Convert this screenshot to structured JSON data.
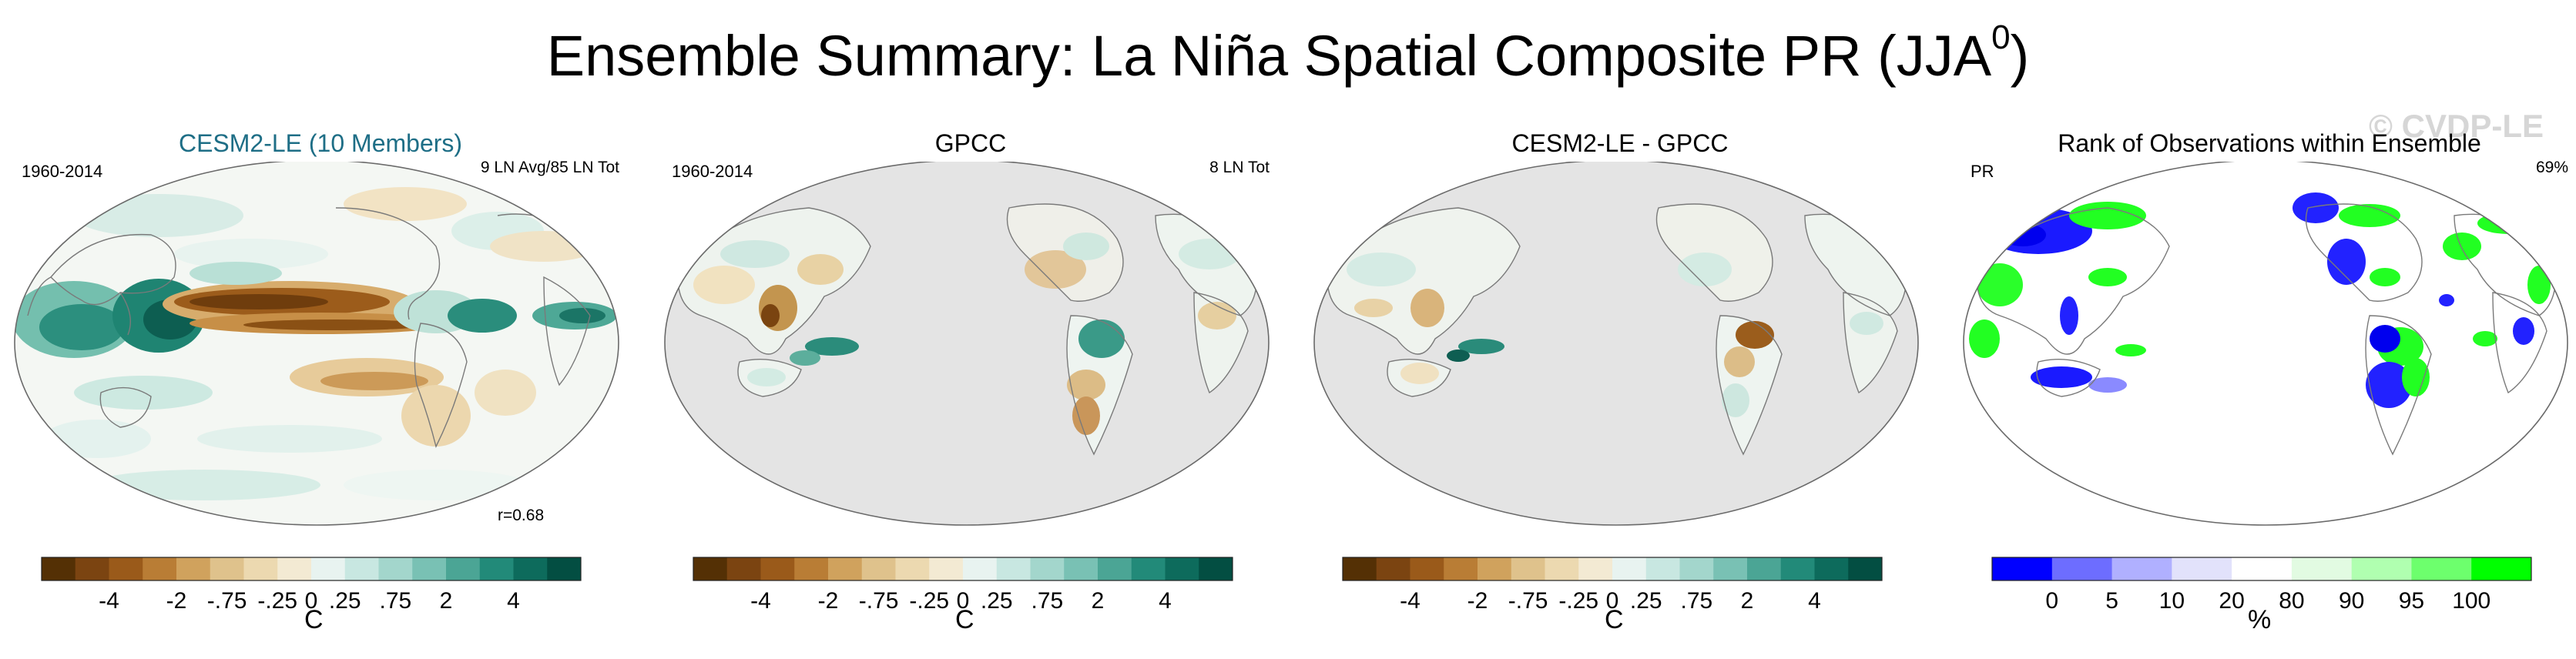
{
  "title": {
    "main": "Ensemble Summary: La Niña Spatial Composite PR (JJA",
    "superscript": "0",
    "close": ")"
  },
  "watermark": "© CVDP-LE",
  "panels": [
    {
      "title": "CESM2-LE (10 Members)",
      "left": "1960-2014",
      "right": "9 LN Avg/85 LN Tot",
      "corr": "r=0.68",
      "background": "ocean-filled"
    },
    {
      "title": "GPCC",
      "left": "1960-2014",
      "right": "8 LN Tot",
      "background": "land-only"
    },
    {
      "title": "CESM2-LE - GPCC",
      "left": "",
      "right": "",
      "background": "land-only"
    },
    {
      "title": "Rank of Observations within Ensemble",
      "left": "PR",
      "right": "69%",
      "background": "rank"
    }
  ],
  "colorbar_pr": {
    "labels": [
      "-4",
      "-2",
      "-.75",
      "-.25",
      "0",
      ".25",
      ".75",
      "2",
      "4"
    ],
    "unit": "C",
    "colors": [
      "#543005",
      "#7b4411",
      "#9a5a1a",
      "#b97d35",
      "#d0a25d",
      "#dfc28c",
      "#ecd9b0",
      "#f3ead3",
      "#e8f3f0",
      "#c8e7e1",
      "#a3d6cc",
      "#79c1b4",
      "#4ba595",
      "#228a79",
      "#0d6b5c",
      "#034e42"
    ]
  },
  "colorbar_rank": {
    "labels": [
      "0",
      "5",
      "10",
      "20",
      "80",
      "90",
      "95",
      "100"
    ],
    "unit": "%",
    "colors": [
      "#0000ff",
      "#6d6dff",
      "#b0b0ff",
      "#e2e2fb",
      "#ffffff",
      "#e2fbe2",
      "#b0ffb0",
      "#6dff6d",
      "#00ff00"
    ]
  }
}
